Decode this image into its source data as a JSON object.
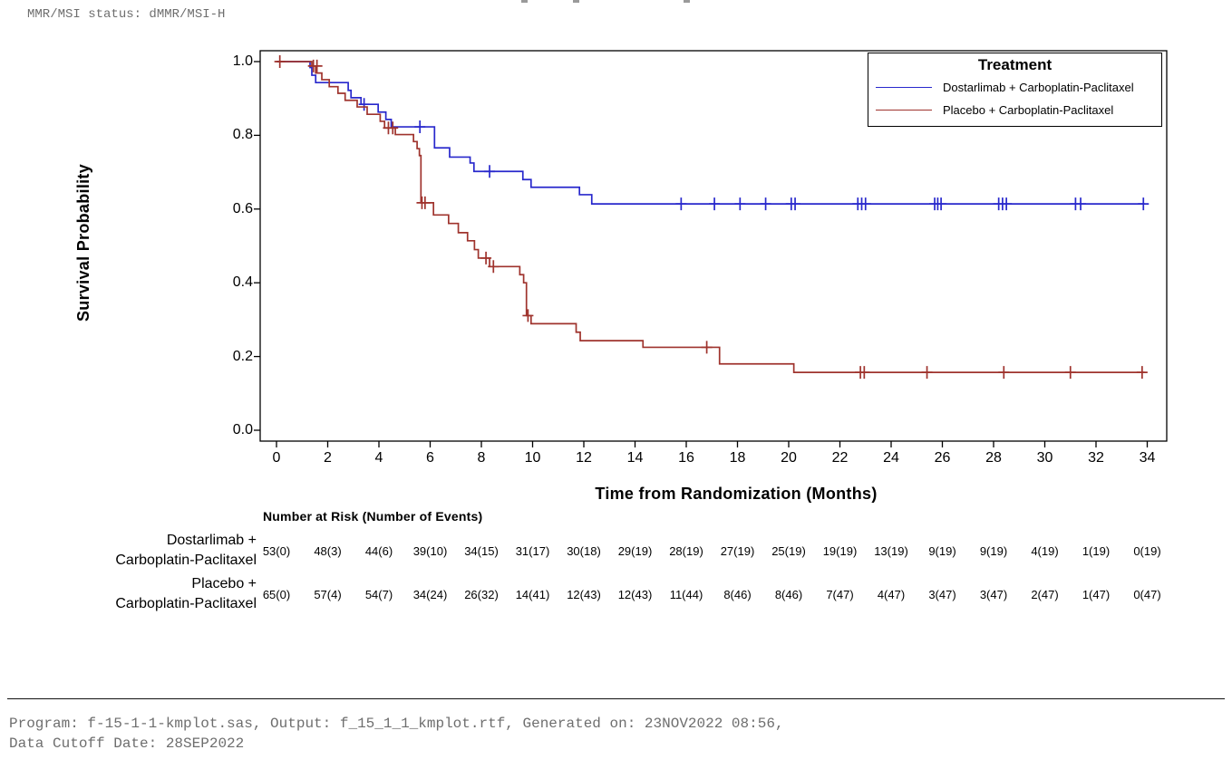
{
  "header": {
    "mmr_status": "MMR/MSI status: dMMR/MSI-H"
  },
  "chart_data": {
    "type": "line",
    "subtype": "kaplan-meier-step",
    "title": "",
    "xlabel": "Time from Randomization (Months)",
    "ylabel": "Survival Probability",
    "xlim": [
      0,
      34
    ],
    "ylim": [
      0.0,
      1.0
    ],
    "grid": false,
    "xticks": [
      0,
      2,
      4,
      6,
      8,
      10,
      12,
      14,
      16,
      18,
      20,
      22,
      24,
      26,
      28,
      30,
      32,
      34
    ],
    "ytick_values": [
      1.0,
      0.8,
      0.6,
      0.4,
      0.2,
      0.0
    ],
    "ytick_labels": [
      "1.0",
      "0.8",
      "0.6",
      "0.4",
      "0.2",
      "0.0"
    ],
    "legend": {
      "title": "Treatment",
      "position": "top-right"
    },
    "series": [
      {
        "name": "Dostarlimab + Carboplatin-Paclitaxel",
        "color": "#2828cc",
        "end_time": 33.9,
        "steps": [
          [
            0,
            1.0
          ],
          [
            1.31,
            0.984
          ],
          [
            1.38,
            0.963
          ],
          [
            1.53,
            0.943
          ],
          [
            2.8,
            0.922
          ],
          [
            2.91,
            0.902
          ],
          [
            3.3,
            0.884
          ],
          [
            3.97,
            0.863
          ],
          [
            4.27,
            0.843
          ],
          [
            4.48,
            0.823
          ],
          [
            6.17,
            0.766
          ],
          [
            6.76,
            0.741
          ],
          [
            7.56,
            0.725
          ],
          [
            7.71,
            0.702
          ],
          [
            9.62,
            0.68
          ],
          [
            9.94,
            0.659
          ],
          [
            11.83,
            0.639
          ],
          [
            12.31,
            0.614
          ]
        ],
        "censors": [
          [
            3.42,
            0.884
          ],
          [
            5.6,
            0.823
          ],
          [
            8.32,
            0.702
          ],
          [
            15.8,
            0.614
          ],
          [
            17.1,
            0.614
          ],
          [
            18.1,
            0.614
          ],
          [
            19.1,
            0.614
          ],
          [
            20.1,
            0.614
          ],
          [
            20.25,
            0.614
          ],
          [
            22.7,
            0.614
          ],
          [
            22.85,
            0.614
          ],
          [
            23.0,
            0.614
          ],
          [
            25.7,
            0.614
          ],
          [
            25.82,
            0.614
          ],
          [
            25.95,
            0.614
          ],
          [
            28.2,
            0.614
          ],
          [
            28.35,
            0.614
          ],
          [
            28.5,
            0.614
          ],
          [
            31.2,
            0.614
          ],
          [
            31.4,
            0.614
          ],
          [
            33.85,
            0.614
          ]
        ]
      },
      {
        "name": "Placebo + Carboplatin-Paclitaxel",
        "color": "#9f332d",
        "end_time": 33.9,
        "steps": [
          [
            0,
            1.0
          ],
          [
            1.38,
            0.988
          ],
          [
            1.53,
            0.969
          ],
          [
            1.77,
            0.951
          ],
          [
            2.06,
            0.932
          ],
          [
            2.4,
            0.914
          ],
          [
            2.68,
            0.895
          ],
          [
            3.15,
            0.877
          ],
          [
            3.54,
            0.857
          ],
          [
            4.05,
            0.838
          ],
          [
            4.22,
            0.82
          ],
          [
            4.64,
            0.802
          ],
          [
            5.35,
            0.783
          ],
          [
            5.49,
            0.764
          ],
          [
            5.58,
            0.745
          ],
          [
            5.64,
            0.617
          ],
          [
            6.13,
            0.584
          ],
          [
            6.72,
            0.561
          ],
          [
            7.1,
            0.536
          ],
          [
            7.46,
            0.514
          ],
          [
            7.73,
            0.49
          ],
          [
            7.88,
            0.467
          ],
          [
            8.32,
            0.444
          ],
          [
            9.5,
            0.422
          ],
          [
            9.65,
            0.4
          ],
          [
            9.76,
            0.311
          ],
          [
            9.94,
            0.289
          ],
          [
            11.7,
            0.266
          ],
          [
            11.86,
            0.243
          ],
          [
            14.31,
            0.225
          ],
          [
            17.3,
            0.18
          ],
          [
            20.2,
            0.157
          ]
        ],
        "censors": [
          [
            0.13,
            1.0
          ],
          [
            1.44,
            0.988
          ],
          [
            1.58,
            0.988
          ],
          [
            4.37,
            0.82
          ],
          [
            4.54,
            0.82
          ],
          [
            5.68,
            0.617
          ],
          [
            5.8,
            0.617
          ],
          [
            8.18,
            0.467
          ],
          [
            8.47,
            0.444
          ],
          [
            9.82,
            0.311
          ],
          [
            16.8,
            0.225
          ],
          [
            22.8,
            0.157
          ],
          [
            22.95,
            0.157
          ],
          [
            25.4,
            0.157
          ],
          [
            28.4,
            0.157
          ],
          [
            31.0,
            0.157
          ],
          [
            33.8,
            0.157
          ]
        ]
      }
    ]
  },
  "at_risk": {
    "header": "Number at Risk (Number of Events)",
    "times": [
      0,
      2,
      4,
      6,
      8,
      10,
      12,
      14,
      16,
      18,
      20,
      22,
      24,
      26,
      28,
      30,
      32,
      34
    ],
    "groups": [
      {
        "label_lines": [
          "Dostarlimab +",
          "Carboplatin-Paclitaxel"
        ],
        "values": [
          "53(0)",
          "48(3)",
          "44(6)",
          "39(10)",
          "34(15)",
          "31(17)",
          "30(18)",
          "29(19)",
          "28(19)",
          "27(19)",
          "25(19)",
          "19(19)",
          "13(19)",
          "9(19)",
          "9(19)",
          "4(19)",
          "1(19)",
          "0(19)"
        ]
      },
      {
        "label_lines": [
          "Placebo +",
          "Carboplatin-Paclitaxel"
        ],
        "values": [
          "65(0)",
          "57(4)",
          "54(7)",
          "34(24)",
          "26(32)",
          "14(41)",
          "12(43)",
          "12(43)",
          "11(44)",
          "8(46)",
          "8(46)",
          "7(47)",
          "4(47)",
          "3(47)",
          "3(47)",
          "2(47)",
          "1(47)",
          "0(47)"
        ]
      }
    ]
  },
  "footer": {
    "line1": "Program: f-15-1-1-kmplot.sas, Output: f_15_1_1_kmplot.rtf, Generated on: 23NOV2022 08:56,",
    "line2": "Data Cutoff Date: 28SEP2022"
  }
}
